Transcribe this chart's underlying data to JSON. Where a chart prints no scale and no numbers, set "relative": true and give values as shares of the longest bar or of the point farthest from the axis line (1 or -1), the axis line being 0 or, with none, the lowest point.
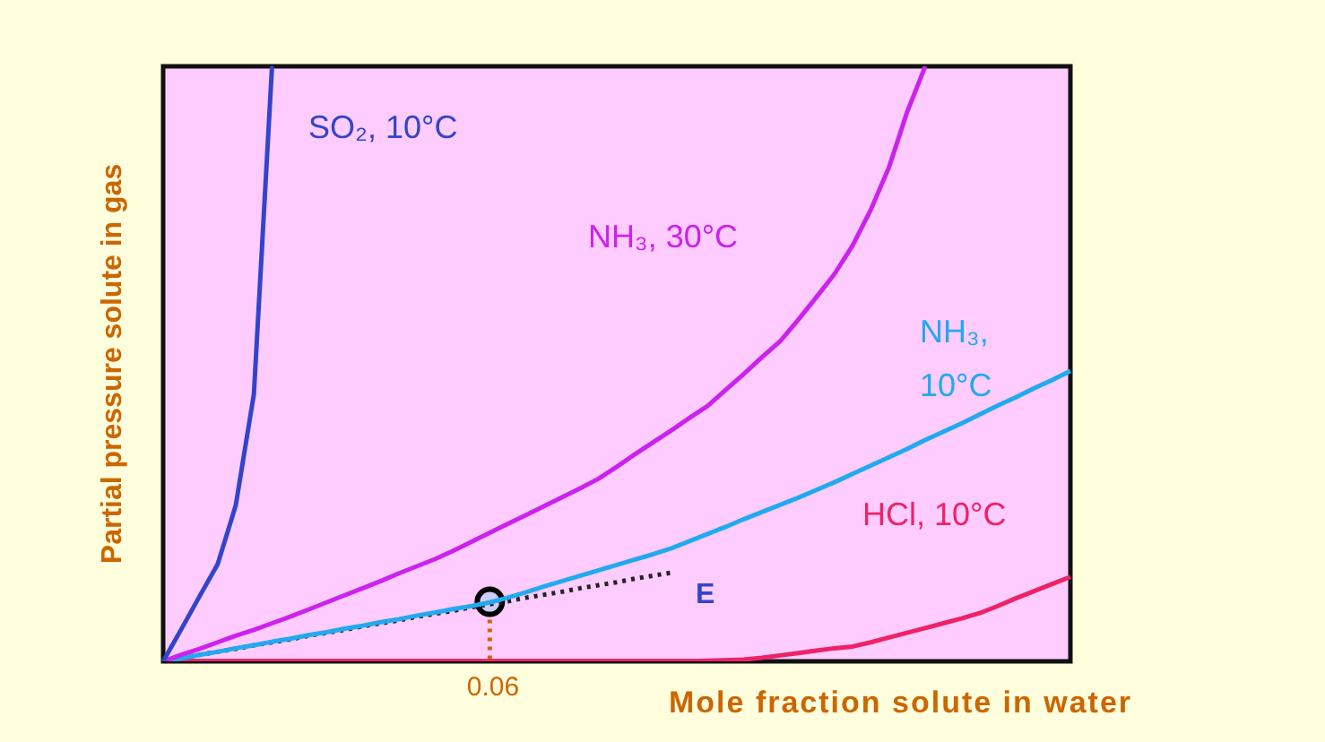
{
  "chart_data": {
    "type": "line",
    "relative": true,
    "xlabel": "Mole fraction solute in water",
    "ylabel": "Partial pressure solute in gas",
    "legend": false,
    "marker": "none",
    "line_style": "solid",
    "categories": [
      null,
      null,
      null,
      null,
      null,
      null,
      null,
      null,
      null,
      null,
      null,
      null,
      null,
      null,
      null,
      null,
      null,
      null,
      null,
      null,
      null,
      null,
      null,
      null,
      null,
      null,
      null,
      null,
      null,
      null,
      null,
      null,
      null,
      null,
      null,
      null,
      null,
      null,
      null,
      null,
      null,
      null,
      null,
      null,
      null,
      null,
      null,
      null,
      null,
      null,
      null
    ],
    "series": [
      {
        "name": "SO₂, 10°C",
        "color": "#3344cc",
        "values": [
          0,
          0.054,
          0.109,
          0.163,
          0.262,
          0.449,
          1,
          null,
          null,
          null,
          null,
          null,
          null,
          null,
          null,
          null,
          null,
          null,
          null,
          null,
          null,
          null,
          null,
          null,
          null,
          null,
          null,
          null,
          null,
          null,
          null,
          null,
          null,
          null,
          null,
          null,
          null,
          null,
          null,
          null,
          null,
          null,
          null,
          null,
          null,
          null,
          null,
          null,
          null,
          null,
          null
        ]
      },
      {
        "name": "NH₃, 30°C",
        "color": "#cc22ee",
        "values": [
          0,
          0.011,
          0.021,
          0.032,
          0.043,
          0.053,
          0.064,
          0.075,
          0.087,
          0.099,
          0.111,
          0.123,
          0.135,
          0.148,
          0.16,
          0.172,
          0.186,
          0.201,
          0.216,
          0.231,
          0.246,
          0.261,
          0.276,
          0.291,
          0.307,
          0.327,
          0.348,
          0.368,
          0.388,
          0.409,
          0.429,
          0.456,
          0.483,
          0.511,
          0.538,
          0.574,
          0.612,
          0.651,
          0.699,
          0.759,
          0.83,
          0.923,
          1,
          null,
          null,
          null,
          null,
          null,
          null,
          null,
          null
        ]
      },
      {
        "name": "NH₃, 10°C",
        "color": "#22aaee",
        "values": [
          0,
          0.005,
          0.011,
          0.016,
          0.022,
          0.027,
          0.033,
          0.038,
          0.044,
          0.049,
          0.055,
          0.06,
          0.066,
          0.071,
          0.077,
          0.082,
          0.088,
          0.093,
          0.099,
          0.107,
          0.116,
          0.126,
          0.135,
          0.144,
          0.153,
          0.162,
          0.171,
          0.18,
          0.19,
          0.202,
          0.214,
          0.226,
          0.239,
          0.251,
          0.263,
          0.275,
          0.288,
          0.301,
          0.315,
          0.329,
          0.343,
          0.357,
          0.372,
          0.386,
          0.4,
          0.415,
          0.43,
          0.444,
          0.459,
          0.473,
          0.488
        ]
      },
      {
        "name": "HCl, 10°C",
        "color": "#ee2266",
        "values": [
          0,
          0,
          0,
          0,
          0,
          0,
          0,
          0,
          0,
          0,
          0,
          0,
          0,
          0,
          0,
          0,
          0,
          0,
          0,
          0,
          0,
          0,
          0,
          0,
          0,
          0,
          0,
          0,
          0,
          0,
          0.001,
          0.002,
          0.003,
          0.006,
          0.01,
          0.014,
          0.018,
          0.022,
          0.025,
          0.032,
          0.04,
          0.048,
          0.056,
          0.064,
          0.072,
          0.081,
          0.093,
          0.106,
          0.118,
          0.13,
          0.142
        ]
      },
      {
        "type": "line",
        "color": "#222222",
        "line_style": "dotted",
        "values": [
          0,
          0.005,
          0.011,
          0.016,
          0.021,
          0.027,
          0.032,
          0.037,
          0.043,
          0.048,
          0.053,
          0.059,
          0.064,
          0.069,
          0.075,
          0.08,
          0.085,
          0.091,
          0.096,
          0.101,
          0.107,
          0.112,
          0.117,
          0.123,
          0.128,
          0.133,
          0.139,
          0.144,
          0.149,
          null,
          null,
          null,
          null,
          null,
          null,
          null,
          null,
          null,
          null,
          null,
          null,
          null,
          null,
          null,
          null,
          null,
          null,
          null,
          null,
          null,
          null
        ]
      },
      {
        "type": "line",
        "color": "#000000",
        "marker": "circle",
        "values": [
          null,
          null,
          null,
          null,
          null,
          null,
          null,
          null,
          null,
          null,
          null,
          null,
          null,
          null,
          null,
          null,
          null,
          null,
          0.1,
          null,
          null,
          null,
          null,
          null,
          null,
          null,
          null,
          null,
          null,
          null,
          null,
          null,
          null,
          null,
          null,
          null,
          null,
          null,
          null,
          null,
          null,
          null,
          null,
          null,
          null,
          null,
          null,
          null,
          null,
          null,
          null
        ]
      }
    ],
    "annotations": [
      "E",
      "0.06"
    ]
  }
}
